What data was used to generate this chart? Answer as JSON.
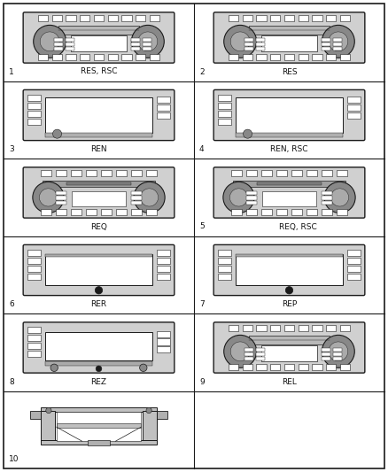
{
  "background": "#ffffff",
  "lc": "#1a1a1a",
  "radio_fill": "#d0d0d0",
  "screen_fill": "#f5f5f5",
  "btn_fill": "#eeeeee",
  "items": [
    {
      "num": "1",
      "label": "RES, RSC",
      "type": "standard",
      "row": 0,
      "col": 0
    },
    {
      "num": "2",
      "label": "RES",
      "type": "standard",
      "row": 0,
      "col": 1
    },
    {
      "num": "3",
      "label": "REN",
      "type": "nav",
      "row": 1,
      "col": 0
    },
    {
      "num": "4",
      "label": "REN, RSC",
      "type": "nav",
      "row": 1,
      "col": 1
    },
    {
      "num": "",
      "label": "REQ",
      "type": "cd",
      "row": 2,
      "col": 0
    },
    {
      "num": "5",
      "label": "REQ, RSC",
      "type": "cd",
      "row": 2,
      "col": 1
    },
    {
      "num": "6",
      "label": "RER",
      "type": "nav2",
      "row": 3,
      "col": 0
    },
    {
      "num": "7",
      "label": "REP",
      "type": "nav2",
      "row": 3,
      "col": 1
    },
    {
      "num": "8",
      "label": "REZ",
      "type": "nav3",
      "row": 4,
      "col": 0
    },
    {
      "num": "9",
      "label": "REL",
      "type": "standard",
      "row": 4,
      "col": 1
    },
    {
      "num": "10",
      "label": "",
      "type": "bracket",
      "row": 5,
      "col": 0
    }
  ],
  "nrows": 6,
  "ncols": 2,
  "label_fontsize": 6.5,
  "num_fontsize": 6.5
}
